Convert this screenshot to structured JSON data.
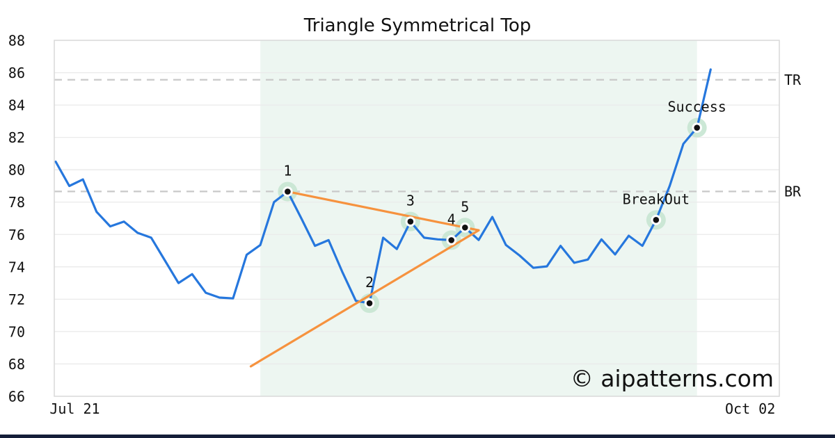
{
  "title": "Triangle Symmetrical Top",
  "watermark": "© aipatterns.com",
  "colors": {
    "price_line": "#2677dd",
    "trendline": "#f6923e",
    "marker_halo": "#c7e5d1",
    "marker_dot": "#111111",
    "pattern_shade": "#edf6f1",
    "level_dash": "#c9c9c9",
    "gridline": "#eaeaea",
    "plot_border": "#d9d9d9",
    "text": "#111111",
    "watermark": "#c9cbf0",
    "bottom_bar": "#141e38",
    "background": "#ffffff"
  },
  "chart_data": {
    "type": "line",
    "title": "Triangle Symmetrical Top",
    "xlabel": "",
    "ylabel": "",
    "ylim": [
      66,
      88
    ],
    "yticks": [
      66,
      68,
      70,
      72,
      74,
      76,
      78,
      80,
      82,
      84,
      86,
      88
    ],
    "xticks": [
      {
        "label": "Jul 21",
        "index": 1.4
      },
      {
        "label": "Oct 02",
        "index": 50.9
      }
    ],
    "grid": true,
    "legend_position": "none",
    "series": [
      {
        "name": "price",
        "values": [
          80.5,
          79.0,
          79.4,
          77.4,
          76.5,
          76.8,
          76.1,
          75.8,
          74.4,
          73.0,
          73.55,
          72.4,
          72.1,
          72.05,
          74.75,
          75.35,
          78.0,
          78.65,
          77.0,
          75.3,
          75.65,
          73.7,
          71.9,
          71.75,
          75.8,
          75.1,
          76.8,
          75.8,
          75.7,
          75.65,
          76.43,
          75.66,
          77.08,
          75.35,
          74.7,
          73.94,
          74.03,
          75.3,
          74.25,
          74.45,
          75.7,
          74.77,
          75.92,
          75.3,
          76.9,
          79.0,
          81.6,
          82.6,
          86.2
        ]
      }
    ],
    "markers": [
      {
        "label": "1",
        "index": 17,
        "value": 78.65
      },
      {
        "label": "2",
        "index": 23,
        "value": 71.75
      },
      {
        "label": "3",
        "index": 26,
        "value": 76.8
      },
      {
        "label": "4",
        "index": 29,
        "value": 75.65
      },
      {
        "label": "5",
        "index": 30,
        "value": 76.43
      },
      {
        "label": "BreakOut",
        "index": 44,
        "value": 76.9
      },
      {
        "label": "Success",
        "index": 47,
        "value": 82.6
      }
    ],
    "trendlines": [
      {
        "name": "upper",
        "from": {
          "index": 17,
          "value": 78.65
        },
        "to": {
          "index": 31,
          "value": 76.26
        }
      },
      {
        "name": "lower",
        "from": {
          "index": 14.3,
          "value": 67.85
        },
        "to": {
          "index": 31,
          "value": 76.26
        }
      }
    ],
    "levels": [
      {
        "label": "TR",
        "value": 85.56
      },
      {
        "label": "BR",
        "value": 78.66
      }
    ],
    "shaded_region": {
      "from_index": 15,
      "to_index": 47
    }
  }
}
